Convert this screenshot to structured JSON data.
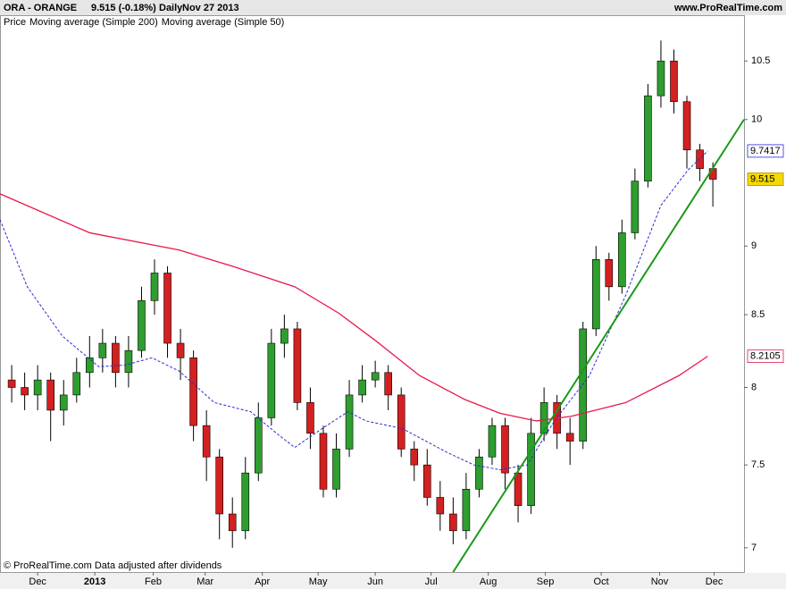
{
  "chart_data": {
    "type": "candlestick",
    "title": "ORA - ORANGE",
    "quote": "9.515 (-0.18%)",
    "interval": "Daily",
    "date": "Nov 27 2013",
    "source": "www.ProRealTime.com",
    "footer": "© ProRealTime.com  Data adjusted after dividends",
    "log_scale": true,
    "xlim": [
      -2.9,
      54.4
    ],
    "ylim": [
      6.86,
      10.9
    ],
    "yticks": [
      7,
      7.5,
      8,
      8.5,
      9,
      10,
      10.5
    ],
    "xticks": [
      {
        "value": 0,
        "label": "Dec"
      },
      {
        "value": 4.4,
        "label": "2013"
      },
      {
        "value": 8.9,
        "label": "Feb"
      },
      {
        "value": 12.9,
        "label": "Mar"
      },
      {
        "value": 17.3,
        "label": "Apr"
      },
      {
        "value": 21.6,
        "label": "May"
      },
      {
        "value": 26,
        "label": "Jun"
      },
      {
        "value": 30.3,
        "label": "Jul"
      },
      {
        "value": 34.7,
        "label": "Aug"
      },
      {
        "value": 39.1,
        "label": "Sep"
      },
      {
        "value": 43.4,
        "label": "Oct"
      },
      {
        "value": 47.9,
        "label": "Nov"
      },
      {
        "value": 52.1,
        "label": "Dec"
      }
    ],
    "series": [
      {
        "name": "Price",
        "up_color": "#2e9e2e",
        "down_color": "#d42020",
        "last_color": "#f5d800",
        "x": [
          -2,
          -1,
          0,
          1,
          2,
          3,
          4,
          5,
          6,
          7,
          8,
          9,
          10,
          11,
          12,
          13,
          14,
          15,
          16,
          17,
          18,
          19,
          20,
          21,
          22,
          23,
          24,
          25,
          26,
          27,
          28,
          29,
          30,
          31,
          32,
          33,
          34,
          35,
          36,
          37,
          38,
          39,
          40,
          41,
          42,
          43,
          44,
          45,
          46,
          47,
          48,
          49,
          50,
          51,
          52
        ],
        "open": [
          8.05,
          8.0,
          7.95,
          8.05,
          7.85,
          7.95,
          8.1,
          8.2,
          8.3,
          8.1,
          8.25,
          8.6,
          8.8,
          8.3,
          8.2,
          7.75,
          7.55,
          7.2,
          7.1,
          7.45,
          7.8,
          8.3,
          8.4,
          7.9,
          7.7,
          7.35,
          7.6,
          7.95,
          8.05,
          8.1,
          7.95,
          7.6,
          7.5,
          7.3,
          7.2,
          7.1,
          7.35,
          7.55,
          7.75,
          7.45,
          7.25,
          7.7,
          7.9,
          7.7,
          7.65,
          8.4,
          8.9,
          8.7,
          9.1,
          9.5,
          10.2,
          10.5,
          10.15,
          9.75,
          9.6
        ],
        "high": [
          8.15,
          8.1,
          8.15,
          8.1,
          8.05,
          8.2,
          8.35,
          8.4,
          8.35,
          8.35,
          8.7,
          8.9,
          8.85,
          8.4,
          8.25,
          7.85,
          7.6,
          7.3,
          7.55,
          7.9,
          8.4,
          8.5,
          8.45,
          8.0,
          7.75,
          7.7,
          8.05,
          8.15,
          8.18,
          8.15,
          8.0,
          7.65,
          7.6,
          7.4,
          7.3,
          7.45,
          7.6,
          7.8,
          7.8,
          7.5,
          7.8,
          8.0,
          7.95,
          7.8,
          8.45,
          9.0,
          8.95,
          9.2,
          9.6,
          10.3,
          10.68,
          10.6,
          10.2,
          9.8,
          9.65
        ],
        "low": [
          7.9,
          7.85,
          7.85,
          7.65,
          7.75,
          7.9,
          8.0,
          8.1,
          8.0,
          8.0,
          8.2,
          8.5,
          8.2,
          8.05,
          7.65,
          7.4,
          7.05,
          7.0,
          7.05,
          7.4,
          7.75,
          8.2,
          7.85,
          7.6,
          7.3,
          7.3,
          7.55,
          7.9,
          8.0,
          7.85,
          7.55,
          7.4,
          7.25,
          7.1,
          7.02,
          7.05,
          7.3,
          7.5,
          7.35,
          7.15,
          7.2,
          7.65,
          7.6,
          7.5,
          7.6,
          8.35,
          8.6,
          8.65,
          9.05,
          9.45,
          10.1,
          10.05,
          9.6,
          9.5,
          9.3
        ],
        "close": [
          8.0,
          7.95,
          8.05,
          7.85,
          7.95,
          8.1,
          8.2,
          8.3,
          8.1,
          8.25,
          8.6,
          8.8,
          8.3,
          8.2,
          7.75,
          7.55,
          7.2,
          7.1,
          7.45,
          7.8,
          8.3,
          8.4,
          7.9,
          7.7,
          7.35,
          7.6,
          7.95,
          8.05,
          8.1,
          7.95,
          7.6,
          7.5,
          7.3,
          7.2,
          7.1,
          7.35,
          7.55,
          7.75,
          7.45,
          7.25,
          7.7,
          7.9,
          7.7,
          7.65,
          8.4,
          8.9,
          8.7,
          9.1,
          9.5,
          10.2,
          10.5,
          10.15,
          9.75,
          9.6,
          9.515
        ]
      },
      {
        "name": "Moving average (Simple 200)",
        "color": "#e8194a",
        "x": [
          -2.9,
          4,
          10.9,
          15,
          19.8,
          23.2,
          26,
          29.4,
          32.9,
          35.6,
          38.4,
          41.1,
          45.3,
          49.4,
          51.6
        ],
        "values": [
          9.4,
          9.1,
          8.97,
          8.85,
          8.7,
          8.51,
          8.32,
          8.08,
          7.92,
          7.83,
          7.78,
          7.81,
          7.9,
          8.08,
          8.2105
        ]
      },
      {
        "name": "Moving average (Simple 50)",
        "color": "#2a2ad8",
        "dashed": true,
        "x": [
          -2.9,
          -0.8,
          1.9,
          4.7,
          6.7,
          8.8,
          10.9,
          13.6,
          16.4,
          18.4,
          19.8,
          21.9,
          23.9,
          25.3,
          28.1,
          31.5,
          33.6,
          35.6,
          37.7,
          39.8,
          42.5,
          45.3,
          48,
          50.1,
          51.6
        ],
        "values": [
          9.2,
          8.7,
          8.35,
          8.14,
          8.15,
          8.2,
          8.11,
          7.9,
          7.84,
          7.7,
          7.61,
          7.73,
          7.84,
          7.78,
          7.73,
          7.58,
          7.5,
          7.47,
          7.5,
          7.78,
          8.08,
          8.64,
          9.31,
          9.59,
          9.7417
        ]
      }
    ],
    "trendline": {
      "color": "#1a9a1a",
      "x": [
        32,
        54.4
      ],
      "values": [
        6.86,
        10
      ]
    }
  }
}
